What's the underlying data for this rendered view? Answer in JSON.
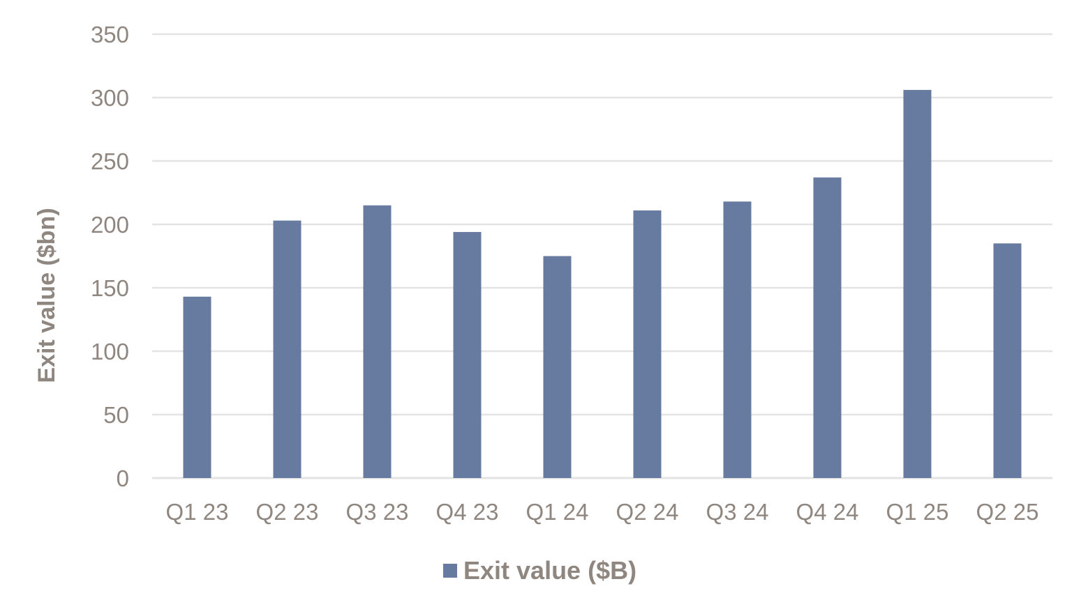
{
  "chart_data": {
    "type": "bar",
    "categories": [
      "Q1 23",
      "Q2 23",
      "Q3 23",
      "Q4 23",
      "Q1 24",
      "Q2 24",
      "Q3 24",
      "Q4 24",
      "Q1 25",
      "Q2 25"
    ],
    "series": [
      {
        "name": "Exit value ($B)",
        "values": [
          143,
          203,
          215,
          194,
          175,
          211,
          218,
          237,
          306,
          185
        ],
        "color": "#677a9f"
      }
    ],
    "title": "",
    "xlabel": "",
    "ylabel": "Exit value ($bn)",
    "ylim": [
      0,
      350
    ],
    "yticks": [
      "0",
      "50",
      "100",
      "150",
      "200",
      "250",
      "300",
      "350"
    ],
    "grid": true,
    "legend": "bottom-center",
    "colors": {
      "bar": "#677a9f",
      "grid": "#e3e3e3",
      "text": "#8f8680"
    }
  }
}
